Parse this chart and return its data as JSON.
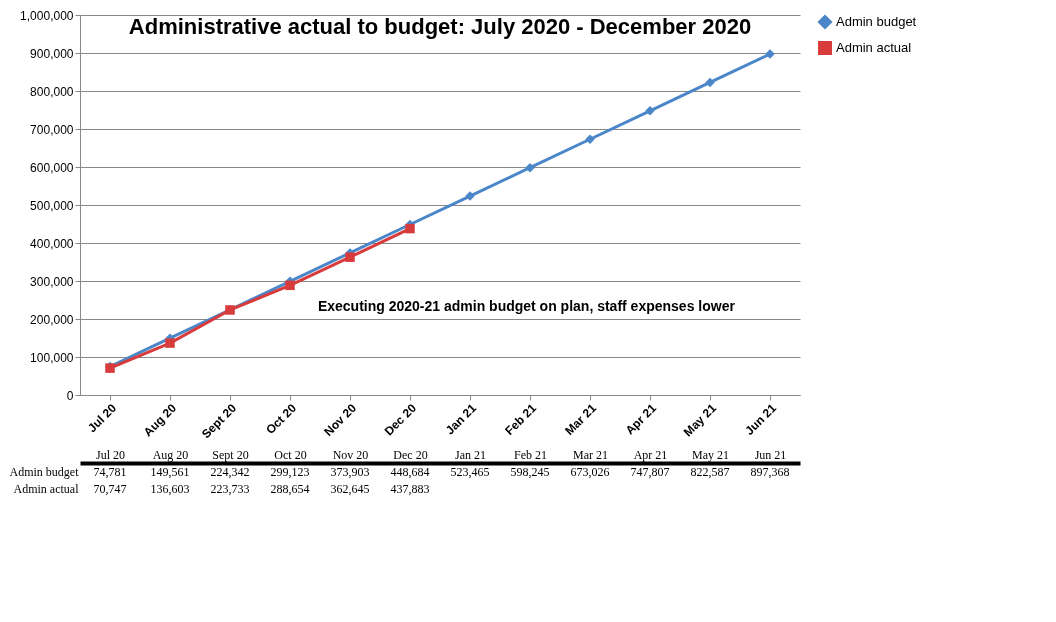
{
  "chart_data": {
    "type": "line",
    "title": "Administrative actual to budget: July 2020 - December 2020",
    "categories": [
      "Jul 20",
      "Aug 20",
      "Sept 20",
      "Oct 20",
      "Nov 20",
      "Dec 20",
      "Jan 21",
      "Feb 21",
      "Mar 21",
      "Apr 21",
      "May 21",
      "Jun 21"
    ],
    "series": [
      {
        "name": "Admin budget",
        "color": "#4a86c8",
        "marker": "diamond",
        "values": [
          74781,
          149561,
          224342,
          299123,
          373903,
          448684,
          523465,
          598245,
          673026,
          747807,
          822587,
          897368
        ],
        "value_labels": [
          "74,781",
          "149,561",
          "224,342",
          "299,123",
          "373,903",
          "448,684",
          "523,465",
          "598,245",
          "673,026",
          "747,807",
          "822,587",
          "897,368"
        ]
      },
      {
        "name": "Admin actual",
        "color": "#d83b3b",
        "marker": "square",
        "values": [
          70747,
          136603,
          223733,
          288654,
          362645,
          437883,
          null,
          null,
          null,
          null,
          null,
          null
        ],
        "value_labels": [
          "70,747",
          "136,603",
          "223,733",
          "288,654",
          "362,645",
          "437,883",
          null,
          null,
          null,
          null,
          null,
          null
        ]
      }
    ],
    "ylim": [
      0,
      1000000
    ],
    "yticks": [
      0,
      {
        "value": 100000,
        "label": "100,000"
      },
      {
        "value": 200000,
        "label": "200,000"
      },
      {
        "value": 300000,
        "label": "300,000"
      },
      {
        "value": 400000,
        "label": "400,000"
      },
      {
        "value": 500000,
        "label": "500,000"
      },
      {
        "value": 600000,
        "label": "600,000"
      },
      {
        "value": 700000,
        "label": "700,000"
      },
      {
        "value": 800000,
        "label": "800,000"
      },
      {
        "value": 900000,
        "label": "900,000"
      },
      {
        "value": 1000000,
        "label": "1,000,000"
      }
    ],
    "grid": "y",
    "legend": "right",
    "line_style": "solid",
    "annotations": [
      "Executing 2020-21 admin budget on plan, staff expenses lower"
    ]
  }
}
